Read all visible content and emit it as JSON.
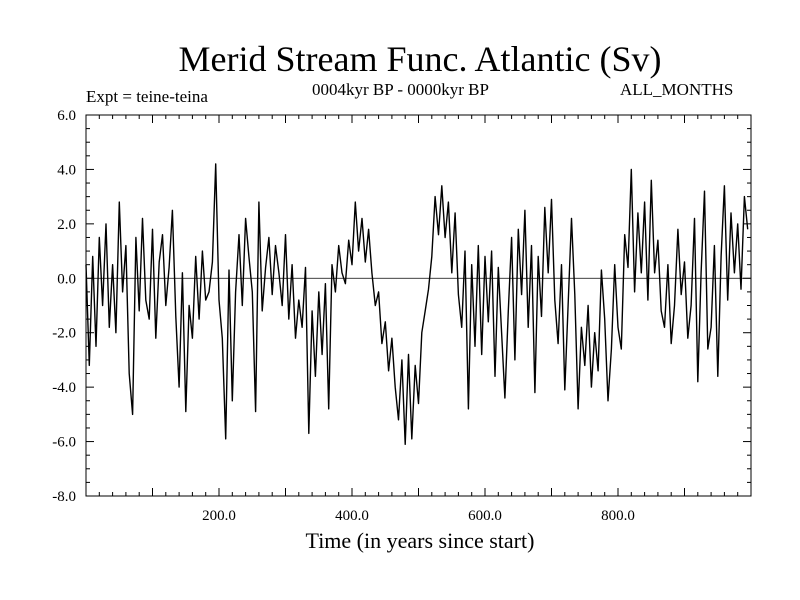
{
  "chart_data": {
    "type": "line",
    "title": "Merid Stream Func. Atlantic (Sv)",
    "header_left": "Expt = teine-teina",
    "header_center": "0004kyr BP - 0000kyr BP",
    "header_right": "ALL_MONTHS",
    "xlabel": "Time (in years since start)",
    "ylabel": "",
    "xlim": [
      0,
      1000
    ],
    "ylim": [
      -8,
      6
    ],
    "x_ticks": [
      200,
      400,
      600,
      800
    ],
    "x_tick_labels": [
      "200.0",
      "400.0",
      "600.0",
      "800.0"
    ],
    "y_ticks": [
      -8,
      -6,
      -4,
      -2,
      0,
      2,
      4,
      6
    ],
    "y_tick_labels": [
      "-8.0",
      "-6.0",
      "-4.0",
      "-2.0",
      "0.0",
      "2.0",
      "4.0",
      "6.0"
    ],
    "zero_line": true,
    "grid": false,
    "series": [
      {
        "color": "#000000",
        "points": [
          [
            0,
            0.5
          ],
          [
            5,
            -3.2
          ],
          [
            10,
            0.8
          ],
          [
            15,
            -2.5
          ],
          [
            20,
            1.5
          ],
          [
            25,
            -1.0
          ],
          [
            30,
            2.0
          ],
          [
            35,
            -1.8
          ],
          [
            40,
            0.5
          ],
          [
            45,
            -2.0
          ],
          [
            50,
            2.8
          ],
          [
            55,
            -0.5
          ],
          [
            60,
            1.2
          ],
          [
            65,
            -3.5
          ],
          [
            70,
            -5.0
          ],
          [
            75,
            1.5
          ],
          [
            80,
            -1.2
          ],
          [
            85,
            2.2
          ],
          [
            90,
            -0.8
          ],
          [
            95,
            -1.5
          ],
          [
            100,
            1.8
          ],
          [
            105,
            -2.2
          ],
          [
            110,
            0.6
          ],
          [
            115,
            1.6
          ],
          [
            120,
            -1.0
          ],
          [
            125,
            0.4
          ],
          [
            130,
            2.5
          ],
          [
            135,
            -1.4
          ],
          [
            140,
            -4.0
          ],
          [
            145,
            0.2
          ],
          [
            150,
            -4.9
          ],
          [
            155,
            -1.0
          ],
          [
            160,
            -2.2
          ],
          [
            165,
            0.8
          ],
          [
            170,
            -1.5
          ],
          [
            175,
            1.0
          ],
          [
            180,
            -0.8
          ],
          [
            185,
            -0.5
          ],
          [
            190,
            0.6
          ],
          [
            195,
            4.2
          ],
          [
            200,
            -0.8
          ],
          [
            205,
            -2.2
          ],
          [
            210,
            -5.9
          ],
          [
            215,
            0.3
          ],
          [
            220,
            -4.5
          ],
          [
            225,
            -0.5
          ],
          [
            230,
            1.6
          ],
          [
            235,
            -1.0
          ],
          [
            240,
            2.2
          ],
          [
            245,
            0.8
          ],
          [
            250,
            -0.5
          ],
          [
            255,
            -4.9
          ],
          [
            260,
            2.8
          ],
          [
            265,
            -1.2
          ],
          [
            270,
            0.4
          ],
          [
            275,
            1.5
          ],
          [
            280,
            -0.6
          ],
          [
            285,
            1.2
          ],
          [
            290,
            0.2
          ],
          [
            295,
            -1.0
          ],
          [
            300,
            1.6
          ],
          [
            305,
            -1.5
          ],
          [
            310,
            0.5
          ],
          [
            315,
            -2.2
          ],
          [
            320,
            -0.8
          ],
          [
            325,
            -1.8
          ],
          [
            330,
            0.4
          ],
          [
            335,
            -5.7
          ],
          [
            340,
            -1.2
          ],
          [
            345,
            -3.6
          ],
          [
            350,
            -0.5
          ],
          [
            355,
            -2.8
          ],
          [
            360,
            -0.2
          ],
          [
            365,
            -4.8
          ],
          [
            370,
            0.5
          ],
          [
            375,
            -0.5
          ],
          [
            380,
            1.2
          ],
          [
            385,
            0.2
          ],
          [
            390,
            -0.2
          ],
          [
            395,
            1.4
          ],
          [
            400,
            0.5
          ],
          [
            405,
            2.8
          ],
          [
            410,
            1.0
          ],
          [
            415,
            2.2
          ],
          [
            420,
            0.6
          ],
          [
            425,
            1.8
          ],
          [
            430,
            0.2
          ],
          [
            435,
            -1.0
          ],
          [
            440,
            -0.5
          ],
          [
            445,
            -2.4
          ],
          [
            450,
            -1.6
          ],
          [
            455,
            -3.4
          ],
          [
            460,
            -2.2
          ],
          [
            465,
            -4.0
          ],
          [
            470,
            -5.2
          ],
          [
            475,
            -3.0
          ],
          [
            480,
            -6.1
          ],
          [
            485,
            -2.8
          ],
          [
            490,
            -5.9
          ],
          [
            495,
            -3.2
          ],
          [
            500,
            -4.6
          ],
          [
            505,
            -2.0
          ],
          [
            510,
            -1.2
          ],
          [
            515,
            -0.4
          ],
          [
            520,
            0.8
          ],
          [
            525,
            3.0
          ],
          [
            530,
            1.6
          ],
          [
            535,
            3.4
          ],
          [
            540,
            1.5
          ],
          [
            545,
            2.8
          ],
          [
            550,
            0.2
          ],
          [
            555,
            2.4
          ],
          [
            560,
            -0.6
          ],
          [
            565,
            -1.8
          ],
          [
            570,
            1.0
          ],
          [
            575,
            -4.8
          ],
          [
            580,
            0.5
          ],
          [
            585,
            -2.5
          ],
          [
            590,
            1.2
          ],
          [
            595,
            -2.8
          ],
          [
            600,
            0.8
          ],
          [
            605,
            -1.6
          ],
          [
            610,
            1.0
          ],
          [
            615,
            -3.6
          ],
          [
            620,
            0.4
          ],
          [
            625,
            -2.0
          ],
          [
            630,
            -4.4
          ],
          [
            635,
            -1.2
          ],
          [
            640,
            1.5
          ],
          [
            645,
            -3.0
          ],
          [
            650,
            1.8
          ],
          [
            655,
            -0.6
          ],
          [
            660,
            2.5
          ],
          [
            665,
            -1.8
          ],
          [
            670,
            1.2
          ],
          [
            675,
            -4.2
          ],
          [
            680,
            0.8
          ],
          [
            685,
            -1.4
          ],
          [
            690,
            2.6
          ],
          [
            695,
            0.2
          ],
          [
            700,
            2.9
          ],
          [
            705,
            -0.8
          ],
          [
            710,
            -2.4
          ],
          [
            715,
            0.5
          ],
          [
            720,
            -4.1
          ],
          [
            725,
            -1.0
          ],
          [
            730,
            2.2
          ],
          [
            735,
            -0.6
          ],
          [
            740,
            -4.8
          ],
          [
            745,
            -1.8
          ],
          [
            750,
            -3.2
          ],
          [
            755,
            -1.0
          ],
          [
            760,
            -4.0
          ],
          [
            765,
            -2.0
          ],
          [
            770,
            -3.4
          ],
          [
            775,
            0.3
          ],
          [
            780,
            -1.5
          ],
          [
            785,
            -4.5
          ],
          [
            790,
            -2.6
          ],
          [
            795,
            0.5
          ],
          [
            800,
            -1.8
          ],
          [
            805,
            -2.6
          ],
          [
            810,
            1.6
          ],
          [
            815,
            0.4
          ],
          [
            820,
            4.0
          ],
          [
            825,
            -0.5
          ],
          [
            830,
            2.4
          ],
          [
            835,
            0.2
          ],
          [
            840,
            2.8
          ],
          [
            845,
            -0.8
          ],
          [
            850,
            3.6
          ],
          [
            855,
            0.2
          ],
          [
            860,
            1.4
          ],
          [
            865,
            -1.2
          ],
          [
            870,
            -1.8
          ],
          [
            875,
            0.5
          ],
          [
            880,
            -2.4
          ],
          [
            885,
            -1.0
          ],
          [
            890,
            1.8
          ],
          [
            895,
            -0.6
          ],
          [
            900,
            0.6
          ],
          [
            905,
            -2.2
          ],
          [
            910,
            -1.0
          ],
          [
            915,
            2.2
          ],
          [
            920,
            -3.8
          ],
          [
            925,
            0.2
          ],
          [
            930,
            3.2
          ],
          [
            935,
            -2.6
          ],
          [
            940,
            -1.8
          ],
          [
            945,
            1.2
          ],
          [
            950,
            -3.6
          ],
          [
            955,
            0.8
          ],
          [
            960,
            3.4
          ],
          [
            965,
            -0.8
          ],
          [
            970,
            2.4
          ],
          [
            975,
            0.2
          ],
          [
            980,
            2.0
          ],
          [
            985,
            -0.4
          ],
          [
            990,
            3.0
          ],
          [
            995,
            1.8
          ]
        ]
      }
    ]
  }
}
